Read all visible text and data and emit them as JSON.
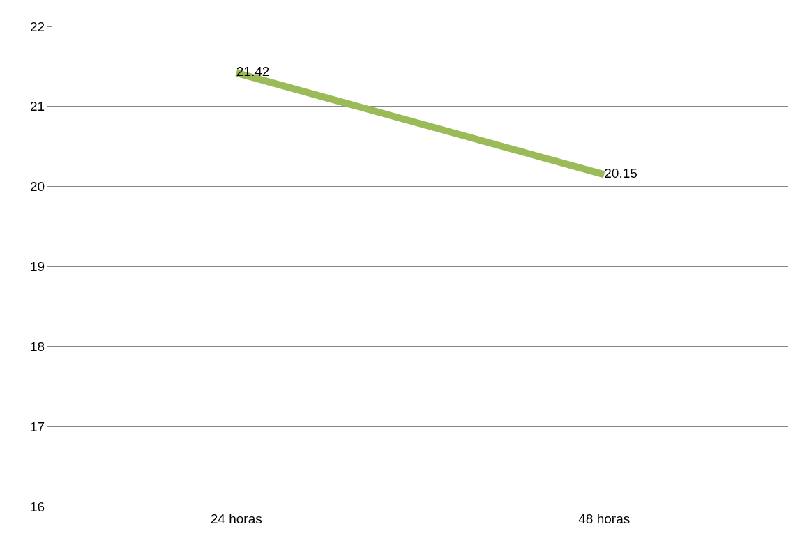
{
  "chart_data": {
    "type": "line",
    "categories": [
      "24 horas",
      "48 horas"
    ],
    "series": [
      {
        "color": "#9bbb59",
        "values": [
          21.42,
          20.15
        ]
      }
    ],
    "ylim": [
      16,
      22
    ],
    "yticks": [
      16,
      17,
      18,
      19,
      20,
      21,
      22
    ],
    "grid": "y",
    "data_labels": true,
    "marker": "none",
    "line_style": "solid"
  }
}
